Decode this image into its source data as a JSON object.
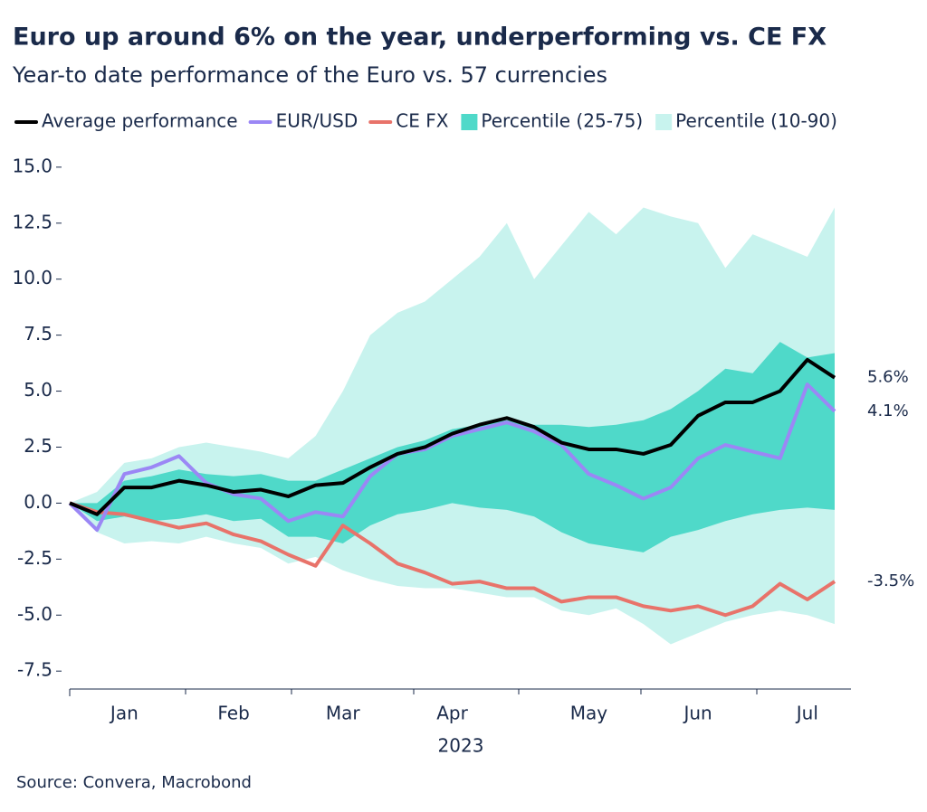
{
  "chart_data": {
    "type": "line",
    "title": "Euro up around 6% on the year, underperforming vs. CE FX",
    "subtitle": "Year-to date performance of the Euro vs. 57 currencies",
    "x_label": "2023",
    "source": "Source: Convera, Macrobond",
    "categories": [
      null,
      null,
      "Jan",
      null,
      null,
      null,
      "Feb",
      null,
      null,
      null,
      "Mar",
      null,
      null,
      null,
      "Apr",
      null,
      null,
      null,
      null,
      "May",
      null,
      null,
      null,
      "Jun",
      null,
      null,
      null,
      "Jul",
      null
    ],
    "ylim": [
      -8.3,
      15.6
    ],
    "yticks": [
      {
        "value": 15,
        "label": "15.0"
      },
      12.5,
      {
        "value": 10,
        "label": "10.0"
      },
      7.5,
      {
        "value": 5,
        "label": "5.0"
      },
      2.5,
      {
        "value": 0,
        "label": "0.0"
      },
      -2.5,
      {
        "value": -5,
        "label": "-5.0"
      },
      -7.5
    ],
    "series": [
      {
        "name": "Average performance",
        "type": "line",
        "color": "#000000",
        "label_color": "#000000",
        "values": [
          0.0,
          -0.5,
          0.7,
          0.7,
          1.0,
          0.8,
          0.5,
          0.6,
          0.3,
          0.8,
          0.9,
          1.6,
          2.2,
          2.5,
          3.1,
          3.5,
          3.8,
          3.4,
          2.7,
          2.4,
          2.4,
          2.2,
          2.6,
          3.9,
          4.5,
          4.5,
          5.0,
          6.4,
          5.6
        ],
        "value_labels": [
          null,
          null,
          null,
          null,
          null,
          null,
          null,
          null,
          null,
          null,
          null,
          null,
          null,
          null,
          null,
          null,
          null,
          null,
          null,
          null,
          null,
          null,
          null,
          null,
          null,
          null,
          null,
          null,
          "5.6%"
        ]
      },
      {
        "name": "EUR/USD",
        "type": "line",
        "color": "#9b87f5",
        "label_color": "#999999",
        "values": [
          0.0,
          -1.2,
          1.3,
          1.6,
          2.1,
          0.9,
          0.4,
          0.2,
          -0.8,
          -0.4,
          -0.6,
          1.2,
          2.2,
          2.4,
          3.0,
          3.3,
          3.6,
          3.2,
          2.6,
          1.3,
          0.8,
          0.2,
          0.7,
          2.0,
          2.6,
          2.3,
          2.0,
          5.3,
          4.1
        ],
        "value_labels": [
          null,
          null,
          null,
          null,
          null,
          null,
          null,
          null,
          null,
          null,
          null,
          null,
          null,
          null,
          null,
          null,
          null,
          null,
          null,
          null,
          null,
          null,
          null,
          null,
          null,
          null,
          null,
          null,
          "4.1%"
        ]
      },
      {
        "name": "CE FX",
        "type": "line",
        "color": "#e8736a",
        "label_color": "#e8736a",
        "values": [
          0.0,
          -0.4,
          -0.5,
          -0.8,
          -1.1,
          -0.9,
          -1.4,
          -1.7,
          -2.3,
          -2.8,
          -1.0,
          -1.8,
          -2.7,
          -3.1,
          -3.6,
          -3.5,
          -3.8,
          -3.8,
          -4.4,
          -4.2,
          -4.2,
          -4.6,
          -4.8,
          -4.6,
          -5.0,
          -4.6,
          -3.6,
          -4.3,
          -3.5
        ],
        "value_labels": [
          null,
          null,
          null,
          null,
          null,
          null,
          null,
          null,
          null,
          null,
          null,
          null,
          null,
          null,
          null,
          null,
          null,
          null,
          null,
          null,
          null,
          null,
          null,
          null,
          null,
          null,
          null,
          null,
          "-3.5%"
        ]
      },
      {
        "name": "Percentile (25-75)",
        "type": "band",
        "color": "#4fd9c9",
        "upper": [
          0.0,
          0.0,
          1.0,
          1.2,
          1.5,
          1.3,
          1.2,
          1.3,
          1.0,
          1.0,
          1.5,
          2.0,
          2.5,
          2.8,
          3.3,
          3.5,
          3.7,
          3.5,
          3.5,
          3.4,
          3.5,
          3.7,
          4.2,
          5.0,
          6.0,
          5.8,
          7.2,
          6.5,
          6.7
        ],
        "lower": [
          0.0,
          -0.8,
          -0.6,
          -0.8,
          -0.7,
          -0.5,
          -0.8,
          -0.7,
          -1.5,
          -1.5,
          -1.8,
          -1.0,
          -0.5,
          -0.3,
          0.0,
          -0.2,
          -0.3,
          -0.6,
          -1.3,
          -1.8,
          -2.0,
          -2.2,
          -1.5,
          -1.2,
          -0.8,
          -0.5,
          -0.3,
          -0.2,
          -0.3
        ]
      },
      {
        "name": "Percentile (10-90)",
        "type": "band",
        "color": "#c8f3ee",
        "upper": [
          0.0,
          0.5,
          1.8,
          2.0,
          2.5,
          2.7,
          2.5,
          2.3,
          2.0,
          3.0,
          5.0,
          7.5,
          8.5,
          9.0,
          10.0,
          11.0,
          12.5,
          10.0,
          11.5,
          13.0,
          12.0,
          13.2,
          12.8,
          12.5,
          10.5,
          12.0,
          11.5,
          11.0,
          13.2
        ],
        "lower": [
          0.0,
          -1.3,
          -1.8,
          -1.7,
          -1.8,
          -1.5,
          -1.8,
          -2.0,
          -2.7,
          -2.4,
          -3.0,
          -3.4,
          -3.7,
          -3.8,
          -3.8,
          -4.0,
          -4.2,
          -4.2,
          -4.8,
          -5.0,
          -4.7,
          -5.4,
          -6.3,
          -5.8,
          -5.3,
          -5.0,
          -4.8,
          -5.0,
          -5.4
        ]
      }
    ]
  }
}
